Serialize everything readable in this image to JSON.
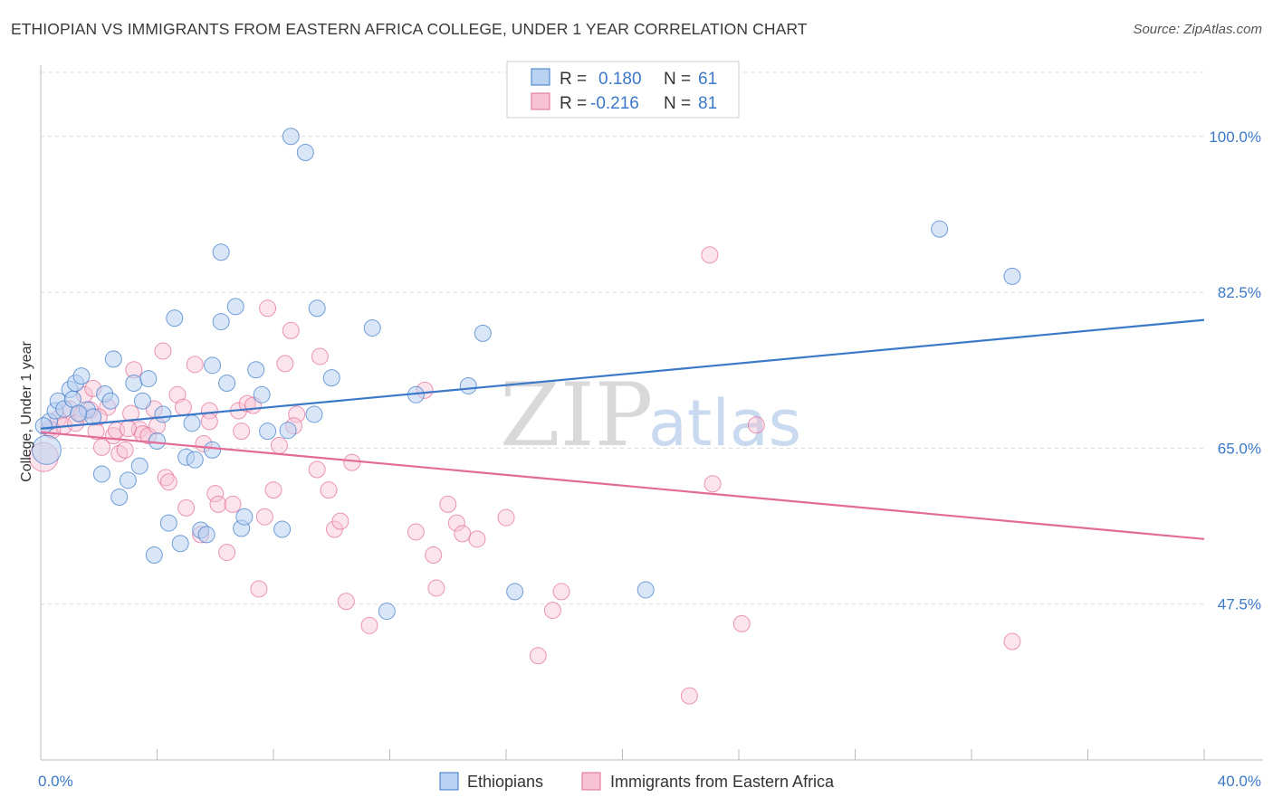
{
  "title": "ETHIOPIAN VS IMMIGRANTS FROM EASTERN AFRICA COLLEGE, UNDER 1 YEAR CORRELATION CHART",
  "source": "Source: ZipAtlas.com",
  "colors": {
    "blue": "#3b78c8",
    "blue_fill": "#b9d2f2",
    "pink": "#e26b97",
    "pink_fill": "#f7c3d4",
    "grid": "#dcdcdc"
  },
  "watermark": {
    "zip": "ZIP",
    "atlas": "atlas"
  },
  "legend": {
    "rows": [
      {
        "r_label": "R =",
        "r_value": "0.180",
        "n_label": "N =",
        "n_value": "61"
      },
      {
        "r_label": "R =",
        "r_value": "-0.216",
        "n_label": "N =",
        "n_value": "81"
      }
    ]
  },
  "bottom_legend": [
    "Ethiopians",
    "Immigrants from Eastern Africa"
  ],
  "chart_data": {
    "type": "scatter",
    "xlabel": "",
    "ylabel": "College, Under 1 year",
    "xlim": [
      0,
      40
    ],
    "ylim": [
      30,
      108
    ],
    "x_tick_labels": [
      "0.0%",
      "40.0%"
    ],
    "y_ticks": [
      47.5,
      65.0,
      82.5,
      100.0
    ],
    "y_tick_labels": [
      "47.5%",
      "65.0%",
      "82.5%",
      "100.0%"
    ],
    "grid": true,
    "legend_position": "top-center",
    "series": [
      {
        "name": "Ethiopians",
        "color": "#3b78c8",
        "trend": {
          "x": [
            0,
            40
          ],
          "y": [
            67.2,
            79.4
          ]
        },
        "points": [
          [
            0.2,
            64.8
          ],
          [
            0.3,
            68.0
          ],
          [
            0.5,
            69.2
          ],
          [
            0.6,
            70.3
          ],
          [
            0.8,
            69.4
          ],
          [
            1.0,
            71.6
          ],
          [
            1.1,
            70.5
          ],
          [
            1.2,
            72.3
          ],
          [
            1.4,
            73.1
          ],
          [
            1.6,
            69.3
          ],
          [
            1.8,
            68.5
          ],
          [
            2.1,
            62.1
          ],
          [
            2.2,
            71.1
          ],
          [
            2.4,
            70.3
          ],
          [
            2.5,
            75.0
          ],
          [
            2.7,
            59.5
          ],
          [
            3.0,
            61.4
          ],
          [
            3.2,
            72.3
          ],
          [
            3.4,
            63.0
          ],
          [
            3.5,
            70.3
          ],
          [
            3.7,
            72.8
          ],
          [
            3.9,
            53.0
          ],
          [
            4.0,
            65.8
          ],
          [
            4.2,
            68.8
          ],
          [
            4.4,
            56.6
          ],
          [
            4.6,
            79.6
          ],
          [
            4.8,
            54.3
          ],
          [
            5.0,
            64.0
          ],
          [
            5.2,
            67.8
          ],
          [
            5.3,
            63.7
          ],
          [
            5.5,
            55.8
          ],
          [
            5.7,
            55.3
          ],
          [
            5.9,
            74.3
          ],
          [
            5.9,
            64.8
          ],
          [
            6.2,
            79.2
          ],
          [
            6.2,
            87.0
          ],
          [
            6.4,
            72.3
          ],
          [
            6.7,
            80.9
          ],
          [
            6.9,
            56.0
          ],
          [
            7.0,
            57.3
          ],
          [
            7.4,
            73.8
          ],
          [
            7.6,
            71.0
          ],
          [
            7.8,
            66.9
          ],
          [
            8.3,
            55.9
          ],
          [
            8.5,
            67.0
          ],
          [
            8.6,
            100.0
          ],
          [
            9.1,
            98.2
          ],
          [
            9.4,
            68.8
          ],
          [
            9.5,
            80.7
          ],
          [
            10.0,
            72.9
          ],
          [
            11.4,
            78.5
          ],
          [
            11.9,
            46.7
          ],
          [
            12.9,
            71.0
          ],
          [
            14.7,
            72.0
          ],
          [
            15.2,
            77.9
          ],
          [
            16.3,
            48.9
          ],
          [
            20.8,
            49.1
          ],
          [
            30.9,
            89.6
          ],
          [
            33.4,
            84.3
          ],
          [
            0.1,
            67.5
          ],
          [
            1.3,
            68.9
          ]
        ]
      },
      {
        "name": "Immigrants from Eastern Africa",
        "color": "#e26b97",
        "trend": {
          "x": [
            0,
            40
          ],
          "y": [
            66.8,
            54.8
          ]
        },
        "points": [
          [
            0.1,
            64.0
          ],
          [
            0.3,
            67.2
          ],
          [
            0.6,
            68.3
          ],
          [
            0.8,
            67.5
          ],
          [
            1.0,
            69.4
          ],
          [
            1.2,
            67.8
          ],
          [
            1.4,
            68.8
          ],
          [
            1.5,
            71.0
          ],
          [
            1.7,
            69.3
          ],
          [
            1.8,
            71.7
          ],
          [
            1.9,
            66.9
          ],
          [
            2.1,
            65.1
          ],
          [
            2.3,
            69.6
          ],
          [
            2.5,
            66.4
          ],
          [
            2.6,
            67.0
          ],
          [
            2.7,
            64.4
          ],
          [
            2.9,
            64.8
          ],
          [
            3.1,
            68.9
          ],
          [
            3.2,
            73.8
          ],
          [
            3.4,
            67.1
          ],
          [
            3.5,
            66.6
          ],
          [
            3.7,
            66.4
          ],
          [
            3.9,
            69.4
          ],
          [
            4.0,
            67.5
          ],
          [
            4.2,
            75.9
          ],
          [
            4.3,
            61.7
          ],
          [
            4.4,
            61.2
          ],
          [
            4.7,
            71.0
          ],
          [
            4.9,
            69.6
          ],
          [
            5.0,
            58.3
          ],
          [
            5.3,
            74.4
          ],
          [
            5.5,
            55.3
          ],
          [
            5.6,
            65.5
          ],
          [
            5.8,
            69.2
          ],
          [
            6.0,
            59.9
          ],
          [
            6.1,
            58.7
          ],
          [
            6.4,
            53.3
          ],
          [
            6.6,
            58.7
          ],
          [
            6.8,
            69.2
          ],
          [
            6.9,
            66.9
          ],
          [
            7.1,
            70.0
          ],
          [
            7.3,
            69.8
          ],
          [
            7.5,
            49.2
          ],
          [
            7.7,
            57.3
          ],
          [
            7.8,
            80.7
          ],
          [
            8.0,
            60.3
          ],
          [
            8.2,
            65.3
          ],
          [
            8.4,
            74.5
          ],
          [
            8.6,
            78.2
          ],
          [
            8.8,
            68.8
          ],
          [
            9.5,
            62.6
          ],
          [
            9.6,
            75.3
          ],
          [
            9.9,
            60.3
          ],
          [
            10.1,
            55.9
          ],
          [
            10.3,
            56.8
          ],
          [
            10.5,
            47.8
          ],
          [
            10.7,
            63.4
          ],
          [
            11.3,
            45.1
          ],
          [
            12.9,
            55.6
          ],
          [
            13.2,
            71.5
          ],
          [
            13.5,
            53.0
          ],
          [
            13.6,
            49.3
          ],
          [
            14.0,
            58.7
          ],
          [
            14.3,
            56.6
          ],
          [
            14.5,
            55.4
          ],
          [
            15.0,
            54.8
          ],
          [
            16.0,
            57.2
          ],
          [
            17.1,
            41.7
          ],
          [
            17.6,
            46.8
          ],
          [
            17.9,
            48.9
          ],
          [
            22.3,
            37.2
          ],
          [
            23.0,
            86.7
          ],
          [
            23.1,
            61.0
          ],
          [
            24.1,
            45.3
          ],
          [
            24.6,
            67.6
          ],
          [
            33.4,
            43.3
          ],
          [
            0.4,
            67.0
          ],
          [
            2.0,
            68.5
          ],
          [
            3.0,
            67.2
          ],
          [
            5.8,
            68.0
          ],
          [
            8.7,
            67.5
          ]
        ]
      }
    ]
  }
}
